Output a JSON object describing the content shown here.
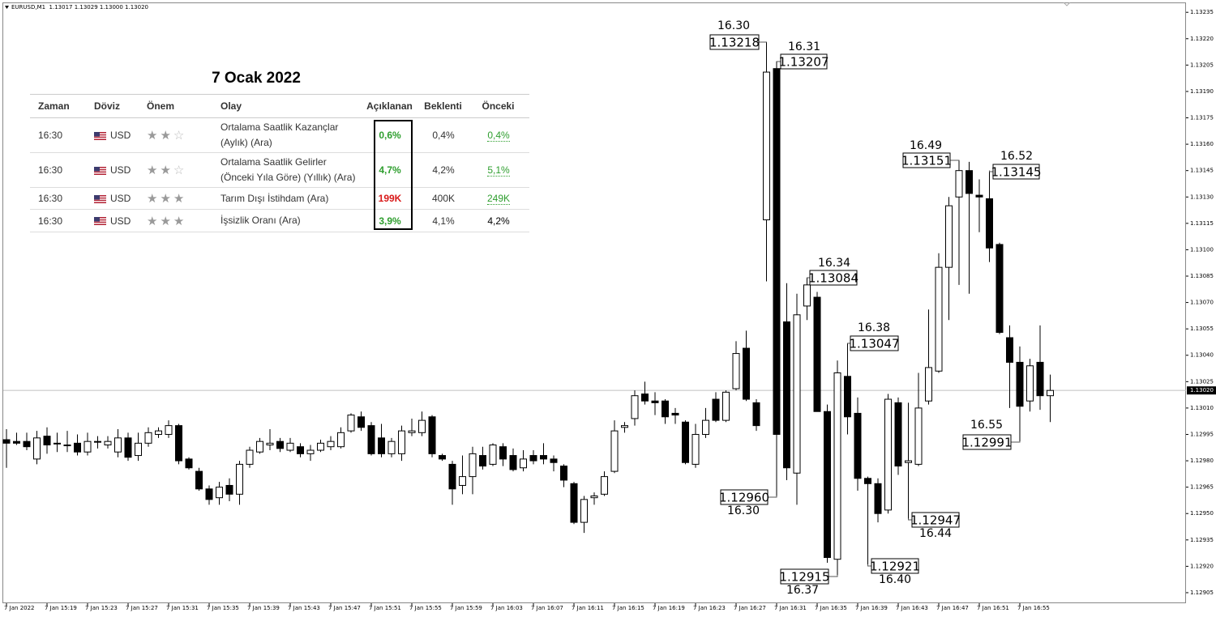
{
  "chart_data": {
    "type": "candlestick",
    "title": "EURUSD,M1  1.13017 1.13029 1.13000 1.13020",
    "up_color": "#ffffff",
    "down_color": "#000000",
    "ylim": [
      1.12899,
      1.13242
    ],
    "yticks": [
      1.13235,
      {
        "value": 1.1322,
        "label": "1.13220"
      },
      1.13205,
      {
        "value": 1.1319,
        "label": "1.13190"
      },
      1.13175,
      {
        "value": 1.1316,
        "label": "1.13160"
      },
      1.13145,
      {
        "value": 1.1313,
        "label": "1.13130"
      },
      1.13115,
      {
        "value": 1.131,
        "label": "1.13100"
      },
      1.13085,
      {
        "value": 1.1307,
        "label": "1.13070"
      },
      1.13055,
      {
        "value": 1.1304,
        "label": "1.13040"
      },
      1.13025,
      {
        "value": 1.1301,
        "label": "1.13010"
      },
      1.12995,
      {
        "value": 1.1298,
        "label": "1.12980"
      },
      1.12965,
      {
        "value": 1.1295,
        "label": "1.12950"
      },
      1.12935,
      {
        "value": 1.1292,
        "label": "1.12920"
      },
      1.12905
    ],
    "current_price": {
      "value": 1.1302,
      "label": "1.13020"
    },
    "categories": [
      "7 Jan 2022",
      null,
      null,
      null,
      "7 Jan 15:19",
      null,
      null,
      null,
      "7 Jan 15:23",
      null,
      null,
      null,
      "7 Jan 15:27",
      null,
      null,
      null,
      "7 Jan 15:31",
      null,
      null,
      null,
      "7 Jan 15:35",
      null,
      null,
      null,
      "7 Jan 15:39",
      null,
      null,
      null,
      "7 Jan 15:43",
      null,
      null,
      null,
      "7 Jan 15:47",
      null,
      null,
      null,
      "7 Jan 15:51",
      null,
      null,
      null,
      "7 Jan 15:55",
      null,
      null,
      null,
      "7 Jan 15:59",
      null,
      null,
      null,
      "7 Jan 16:03",
      null,
      null,
      null,
      "7 Jan 16:07",
      null,
      null,
      null,
      "7 Jan 16:11",
      null,
      null,
      null,
      "7 Jan 16:15",
      null,
      null,
      null,
      "7 Jan 16:19",
      null,
      null,
      null,
      "7 Jan 16:23",
      null,
      null,
      null,
      "7 Jan 16:27",
      null,
      null,
      null,
      "7 Jan 16:31",
      null,
      null,
      null,
      "7 Jan 16:35",
      null,
      null,
      null,
      "7 Jan 16:39",
      null,
      null,
      null,
      "7 Jan 16:43",
      null,
      null,
      null,
      "7 Jan 16:47",
      null,
      null,
      null,
      "7 Jan 16:51",
      null,
      null,
      null,
      "7 Jan 16:55",
      null,
      null,
      null
    ],
    "open": [
      1.12992,
      1.12991,
      1.12991,
      1.12981,
      1.12994,
      1.1299,
      1.12989,
      1.1299,
      1.12985,
      1.12991,
      1.12989,
      1.12985,
      1.12993,
      1.12983,
      1.1299,
      1.12995,
      1.12995,
      1.13,
      1.12981,
      1.12974,
      1.12964,
      1.12959,
      1.12966,
      1.12961,
      1.12978,
      1.12985,
      1.12989,
      1.12991,
      1.12986,
      1.12988,
      1.12984,
      1.12986,
      1.12988,
      1.12988,
      1.12997,
      1.13005,
      1.13,
      1.12993,
      1.12984,
      1.12984,
      1.12996,
      1.12996,
      1.13005,
      1.12983,
      1.12978,
      1.12966,
      1.12971,
      1.12983,
      1.12978,
      1.12988,
      1.12983,
      1.12976,
      1.12983,
      1.12983,
      1.12981,
      1.12977,
      1.12967,
      1.12945,
      1.12959,
      1.12961,
      1.12974,
      1.12999,
      1.13004,
      1.13018,
      1.13014,
      1.13014,
      1.13007,
      1.13002,
      1.12978,
      1.12995,
      1.13015,
      1.13003,
      1.13021,
      1.13044,
      1.13013,
      1.13117,
      1.13203,
      1.13059,
      1.12973,
      1.13068,
      1.13073,
      1.13008,
      1.12924,
      1.13028,
      1.13007,
      1.1297,
      1.12967,
      1.12952,
      1.13013,
      1.12979,
      1.12978,
      1.13014,
      1.13031,
      1.1309,
      1.1313,
      1.13145,
      1.13131,
      1.13129,
      1.13103,
      1.1305,
      1.13036,
      1.13014,
      1.13036,
      1.13017
    ],
    "high": [
      1.12998,
      1.12996,
      1.12996,
      1.12997,
      1.12999,
      1.12996,
      1.12997,
      1.12995,
      1.12996,
      1.12994,
      1.12994,
      1.12998,
      1.12996,
      1.12996,
      1.12999,
      1.12999,
      1.13003,
      1.13001,
      1.12982,
      1.12976,
      1.12966,
      1.12968,
      1.1297,
      1.1298,
      1.12988,
      1.12993,
      1.12998,
      1.12993,
      1.12993,
      1.1299,
      1.12989,
      1.12992,
      1.12994,
      1.12999,
      1.13007,
      1.13008,
      1.13002,
      1.13001,
      1.12993,
      1.13,
      1.13004,
      1.13008,
      1.13006,
      1.12984,
      1.1298,
      1.12983,
      1.12988,
      1.12988,
      1.1299,
      1.1299,
      1.12987,
      1.12986,
      1.12986,
      1.1299,
      1.12983,
      1.12978,
      1.12968,
      1.1296,
      1.12962,
      1.12974,
      1.13003,
      1.13002,
      1.1302,
      1.13025,
      1.13019,
      1.13015,
      1.1301,
      1.13003,
      1.13001,
      1.1301,
      1.13019,
      1.1302,
      1.13048,
      1.13054,
      1.13015,
      1.13218,
      1.13207,
      1.13081,
      1.13075,
      1.13084,
      1.13076,
      1.13012,
      1.13037,
      1.13047,
      1.13016,
      1.12971,
      1.1297,
      1.13018,
      1.13016,
      1.13013,
      1.1303,
      1.13066,
      1.13098,
      1.1313,
      1.13151,
      1.1315,
      1.1314,
      1.13145,
      1.13104,
      1.13057,
      1.13045,
      1.13038,
      1.13057,
      1.13029
    ],
    "low": [
      1.12976,
      1.12989,
      1.12986,
      1.12978,
      1.12984,
      1.12985,
      1.12985,
      1.12983,
      1.12983,
      1.12987,
      1.12987,
      1.12982,
      1.1298,
      1.1298,
      1.12988,
      1.12993,
      1.12993,
      1.12978,
      1.12975,
      1.12963,
      1.12955,
      1.12955,
      1.12957,
      1.12955,
      1.12976,
      1.12984,
      1.12986,
      1.12985,
      1.12985,
      1.12982,
      1.1298,
      1.12985,
      1.12986,
      1.12987,
      1.12996,
      1.12997,
      1.12983,
      1.12982,
      1.12982,
      1.1298,
      1.12994,
      1.12994,
      1.12982,
      1.1298,
      1.12955,
      1.12961,
      1.12961,
      1.12975,
      1.12977,
      1.12977,
      1.12974,
      1.12974,
      1.12978,
      1.12978,
      1.12974,
      1.12965,
      1.12944,
      1.12939,
      1.12955,
      1.1296,
      1.12973,
      1.12996,
      1.13,
      1.13012,
      1.13006,
      1.13001,
      1.13001,
      1.12978,
      1.12976,
      1.12993,
      1.13002,
      1.13002,
      1.1302,
      1.13014,
      1.12997,
      1.13082,
      1.1296,
      1.12969,
      1.12955,
      1.1306,
      1.13008,
      1.12922,
      1.12915,
      1.12995,
      1.12963,
      1.12921,
      1.12945,
      1.1295,
      1.12972,
      1.12947,
      1.12977,
      1.13012,
      1.1303,
      1.1306,
      1.1308,
      1.13075,
      1.1311,
      1.13093,
      1.13052,
      1.1301,
      1.12991,
      1.13008,
      1.13009,
      1.13002
    ],
    "close": [
      1.1299,
      1.1299,
      1.12988,
      1.12993,
      1.12989,
      1.1299,
      1.12989,
      1.12985,
      1.12991,
      1.12991,
      1.12991,
      1.12993,
      1.12982,
      1.1299,
      1.12996,
      1.12997,
      1.13,
      1.1298,
      1.12976,
      1.12964,
      1.12958,
      1.12965,
      1.12961,
      1.12978,
      1.12986,
      1.12991,
      1.1299,
      1.12987,
      1.1299,
      1.12984,
      1.12986,
      1.1299,
      1.12991,
      1.12996,
      1.13006,
      1.12999,
      1.12984,
      1.12984,
      1.12991,
      1.12997,
      1.12997,
      1.13003,
      1.12984,
      1.12981,
      1.12964,
      1.12971,
      1.12984,
      1.12977,
      1.12989,
      1.12981,
      1.12975,
      1.12981,
      1.1298,
      1.12981,
      1.12979,
      1.12969,
      1.12945,
      1.12958,
      1.1296,
      1.12971,
      1.12997,
      1.13,
      1.13017,
      1.13014,
      1.13013,
      1.13005,
      1.13006,
      1.12979,
      1.12995,
      1.13003,
      1.13003,
      1.13019,
      1.13041,
      1.13015,
      1.13,
      1.13201,
      1.12995,
      1.12976,
      1.13063,
      1.1308,
      1.13008,
      1.12925,
      1.1303,
      1.13005,
      1.1297,
      1.12967,
      1.1295,
      1.13015,
      1.12977,
      1.1298,
      1.1301,
      1.13033,
      1.1309,
      1.13125,
      1.13145,
      1.13132,
      1.1313,
      1.13101,
      1.13053,
      1.13036,
      1.13011,
      1.13034,
      1.13017,
      1.1302
    ],
    "annotations": [
      {
        "time": "16.30",
        "price": "1.13218"
      },
      {
        "time": "16.31",
        "price": "1.13207"
      },
      {
        "time": "16.34",
        "price": "1.13084"
      },
      {
        "time": "16.38",
        "price": "1.13047"
      },
      {
        "time": "16.49",
        "price": "1.13151"
      },
      {
        "time": "16.52",
        "price": "1.13145"
      },
      {
        "time": "16.55",
        "price": "1.12991"
      },
      {
        "time": "16.30",
        "price": "1.12960"
      },
      {
        "time": "16.37",
        "price": "1.12915"
      },
      {
        "time": "16.40",
        "price": "1.12921"
      },
      {
        "time": "16.44",
        "price": "1.12947"
      }
    ]
  },
  "table": {
    "title": "7 Ocak 2022",
    "columns": [
      "Zaman",
      "Döviz",
      "Önem",
      "Olay",
      "Açıklanan",
      "Beklenti",
      "Önceki"
    ],
    "rows": [
      {
        "time": "16:30",
        "currency": "USD",
        "importance": 2,
        "event": [
          "Ortalama Saatlik Kazançlar",
          "(Aylık) (Ara)"
        ],
        "actual": "0,6%",
        "actual_color": "#2e9e2e",
        "forecast": "0,4%",
        "previous": "0,4%",
        "previous_color": "#2e9e2e",
        "previous_underline": true
      },
      {
        "time": "16:30",
        "currency": "USD",
        "importance": 2,
        "event": [
          "Ortalama Saatlik Gelirler",
          "(Önceki Yıla Göre) (Yıllık) (Ara)"
        ],
        "actual": "4,7%",
        "actual_color": "#2e9e2e",
        "forecast": "4,2%",
        "previous": "5,1%",
        "previous_color": "#2e9e2e",
        "previous_underline": true
      },
      {
        "time": "16:30",
        "currency": "USD",
        "importance": 3,
        "event": [
          "Tarım Dışı İstihdam (Ara)"
        ],
        "actual": "199K",
        "actual_color": "#d91a1a",
        "forecast": "400K",
        "previous": "249K",
        "previous_color": "#2e9e2e",
        "previous_underline": true
      },
      {
        "time": "16:30",
        "currency": "USD",
        "importance": 3,
        "event": [
          "İşsizlik Oranı (Ara)"
        ],
        "actual": "3,9%",
        "actual_color": "#2e9e2e",
        "forecast": "4,1%",
        "previous": "4,2%",
        "previous_color": "#000000",
        "previous_underline": false
      }
    ]
  }
}
